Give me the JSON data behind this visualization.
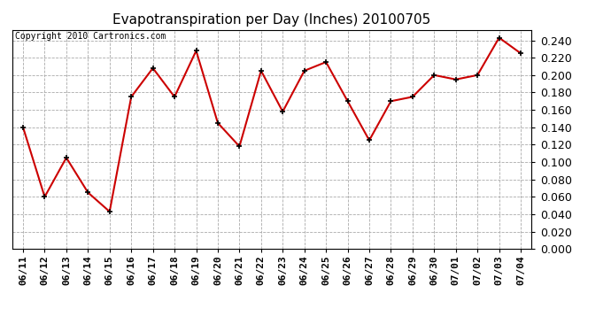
{
  "title": "Evapotranspiration per Day (Inches) 20100705",
  "copyright_text": "Copyright 2010 Cartronics.com",
  "dates": [
    "06/11",
    "06/12",
    "06/13",
    "06/14",
    "06/15",
    "06/16",
    "06/17",
    "06/18",
    "06/19",
    "06/20",
    "06/21",
    "06/22",
    "06/23",
    "06/24",
    "06/25",
    "06/26",
    "06/27",
    "06/28",
    "06/29",
    "06/30",
    "07/01",
    "07/02",
    "07/03",
    "07/04"
  ],
  "values": [
    0.14,
    0.06,
    0.105,
    0.065,
    0.043,
    0.175,
    0.208,
    0.175,
    0.228,
    0.145,
    0.118,
    0.205,
    0.158,
    0.205,
    0.215,
    0.17,
    0.125,
    0.17,
    0.175,
    0.2,
    0.195,
    0.2,
    0.243,
    0.225
  ],
  "line_color": "#cc0000",
  "marker": "+",
  "marker_color": "#000000",
  "ylim": [
    0.0,
    0.252
  ],
  "yticks": [
    0.0,
    0.02,
    0.04,
    0.06,
    0.08,
    0.1,
    0.12,
    0.14,
    0.16,
    0.18,
    0.2,
    0.22,
    0.24
  ],
  "background_color": "#ffffff",
  "grid_color": "#aaaaaa",
  "title_fontsize": 11,
  "copyright_fontsize": 7,
  "tick_fontsize": 8,
  "ytick_fontsize": 9
}
